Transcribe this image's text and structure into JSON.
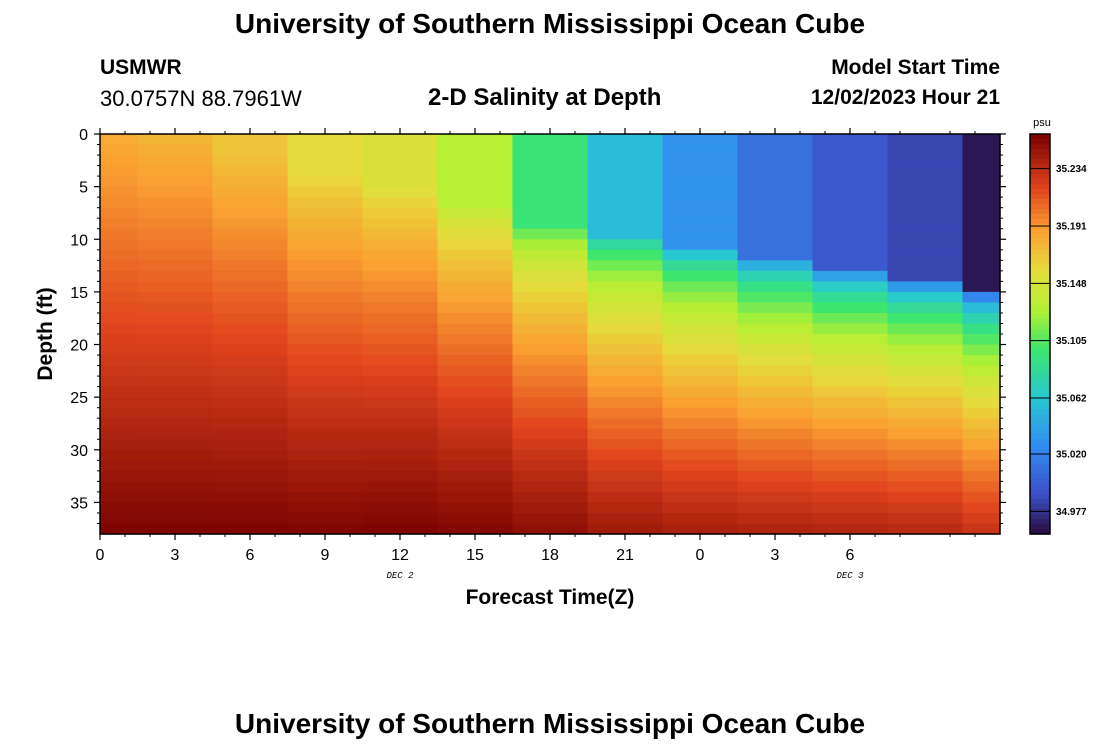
{
  "header": {
    "title": "University of Southern Mississippi Ocean Cube",
    "station_name": "USMWR",
    "station_coords": "30.0757N  88.7961W",
    "subtitle": "2-D Salinity at Depth",
    "model_start_label": "Model Start Time",
    "model_start_value": "12/02/2023 Hour 21"
  },
  "footer": {
    "title": "University of Southern Mississippi Ocean Cube"
  },
  "chart_data": {
    "type": "heatmap",
    "title": "2-D Salinity at Depth",
    "xlabel": "Forecast Time(Z)",
    "ylabel": "Depth (ft)",
    "x_ticks": [
      "0",
      "3",
      "6",
      "9",
      "12",
      "15",
      "18",
      "21",
      "0",
      "3",
      "6"
    ],
    "x_day_labels": [
      {
        "label": "DEC 2",
        "at_hour": 12
      },
      {
        "label": "DEC 3",
        "at_hour": 30
      }
    ],
    "x_range_hours": [
      0,
      36
    ],
    "y_ticks": [
      0,
      5,
      10,
      15,
      20,
      25,
      30,
      35
    ],
    "y_range_ft": [
      0,
      38
    ],
    "colorbar": {
      "unit": "psu",
      "min": 34.96,
      "max": 35.26,
      "ticks": [
        "35.234",
        "35.191",
        "35.148",
        "35.105",
        "35.062",
        "35.020",
        "34.977"
      ]
    },
    "time_hours": [
      0,
      3,
      6,
      9,
      12,
      15,
      18,
      21,
      24,
      27,
      30,
      33,
      36
    ],
    "profiles_psu": [
      {
        "hour": 0,
        "surface": 35.182,
        "bottom": 35.258,
        "mix_depth": 0,
        "sharp": 1.0
      },
      {
        "hour": 3,
        "surface": 35.176,
        "bottom": 35.258,
        "mix_depth": 0,
        "sharp": 1.1
      },
      {
        "hour": 6,
        "surface": 35.17,
        "bottom": 35.258,
        "mix_depth": 2,
        "sharp": 1.2
      },
      {
        "hour": 9,
        "surface": 35.158,
        "bottom": 35.257,
        "mix_depth": 4,
        "sharp": 1.3
      },
      {
        "hour": 12,
        "surface": 35.15,
        "bottom": 35.258,
        "mix_depth": 5,
        "sharp": 1.4
      },
      {
        "hour": 15,
        "surface": 35.13,
        "bottom": 35.256,
        "mix_depth": 7,
        "sharp": 1.6
      },
      {
        "hour": 18,
        "surface": 35.095,
        "bottom": 35.252,
        "mix_depth": 9,
        "sharp": 1.8
      },
      {
        "hour": 21,
        "surface": 35.055,
        "bottom": 35.245,
        "mix_depth": 10,
        "sharp": 2.0
      },
      {
        "hour": 24,
        "surface": 35.03,
        "bottom": 35.242,
        "mix_depth": 11,
        "sharp": 2.1
      },
      {
        "hour": 27,
        "surface": 35.01,
        "bottom": 35.24,
        "mix_depth": 12,
        "sharp": 2.2
      },
      {
        "hour": 30,
        "surface": 34.995,
        "bottom": 35.238,
        "mix_depth": 13,
        "sharp": 2.3
      },
      {
        "hour": 33,
        "surface": 34.985,
        "bottom": 35.236,
        "mix_depth": 14,
        "sharp": 2.4
      },
      {
        "hour": 36,
        "surface": 34.965,
        "bottom": 35.23,
        "mix_depth": 15,
        "sharp": 2.5
      }
    ]
  }
}
